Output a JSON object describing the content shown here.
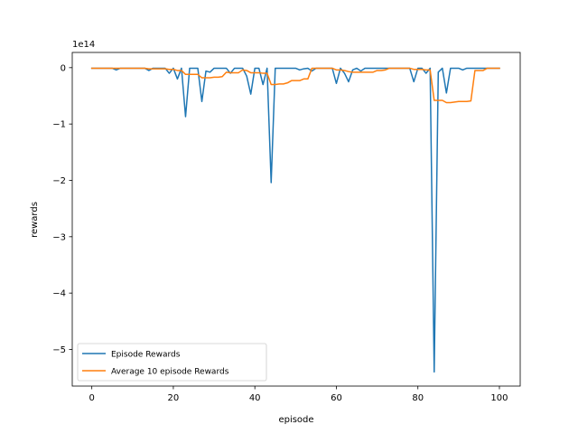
{
  "chart_data": {
    "type": "line",
    "title": "",
    "xlabel": "episode",
    "ylabel": "rewards",
    "y_offset_label": "1e14",
    "xlim": [
      -4.8,
      105.1
    ],
    "ylim": [
      -5.65,
      0.27
    ],
    "x_ticks": [
      0,
      20,
      40,
      60,
      80,
      100
    ],
    "x_tick_labels": [
      "0",
      "20",
      "40",
      "60",
      "80",
      "100"
    ],
    "y_ticks": [
      0,
      -1,
      -2,
      -3,
      -4,
      -5
    ],
    "y_tick_labels": [
      "0",
      "−1",
      "−2",
      "−3",
      "−4",
      "−5"
    ],
    "grid": false,
    "legend_position": "lower-left",
    "series": [
      {
        "name": "Episode Rewards",
        "color": "#1f77b4",
        "x": [
          0,
          1,
          2,
          3,
          4,
          5,
          6,
          7,
          8,
          9,
          10,
          11,
          12,
          13,
          14,
          15,
          16,
          17,
          18,
          19,
          20,
          21,
          22,
          23,
          24,
          25,
          26,
          27,
          28,
          29,
          30,
          31,
          32,
          33,
          34,
          35,
          36,
          37,
          38,
          39,
          40,
          41,
          42,
          43,
          44,
          45,
          46,
          47,
          48,
          49,
          50,
          51,
          52,
          53,
          54,
          55,
          56,
          57,
          58,
          59,
          60,
          61,
          62,
          63,
          64,
          65,
          66,
          67,
          68,
          69,
          70,
          71,
          72,
          73,
          74,
          75,
          76,
          77,
          78,
          79,
          80,
          81,
          82,
          83,
          84,
          85,
          86,
          87,
          88,
          89,
          90,
          91,
          92,
          93,
          94,
          95,
          96,
          97,
          98,
          99,
          100
        ],
        "values": [
          -0.01,
          -0.01,
          -0.01,
          -0.01,
          -0.01,
          -0.01,
          -0.04,
          -0.01,
          -0.01,
          -0.01,
          -0.01,
          -0.01,
          -0.01,
          -0.01,
          -0.05,
          -0.01,
          -0.01,
          -0.01,
          -0.01,
          -0.1,
          -0.01,
          -0.2,
          -0.01,
          -0.87,
          -0.01,
          -0.01,
          -0.01,
          -0.6,
          -0.06,
          -0.08,
          -0.01,
          -0.01,
          -0.01,
          -0.01,
          -0.1,
          -0.01,
          -0.01,
          -0.01,
          -0.15,
          -0.47,
          -0.01,
          -0.01,
          -0.3,
          -0.01,
          -2.04,
          -0.01,
          -0.01,
          -0.01,
          -0.01,
          -0.01,
          -0.01,
          -0.04,
          -0.02,
          -0.01,
          -0.06,
          -0.01,
          -0.01,
          -0.01,
          -0.01,
          -0.01,
          -0.28,
          -0.01,
          -0.1,
          -0.25,
          -0.04,
          -0.01,
          -0.06,
          -0.01,
          -0.01,
          -0.01,
          -0.01,
          -0.01,
          -0.01,
          -0.01,
          -0.01,
          -0.01,
          -0.01,
          -0.01,
          -0.01,
          -0.25,
          -0.01,
          -0.01,
          -0.1,
          -0.01,
          -5.4,
          -0.08,
          -0.01,
          -0.45,
          -0.01,
          -0.01,
          -0.01,
          -0.04,
          -0.01,
          -0.01,
          -0.01,
          -0.01,
          -0.01,
          -0.01,
          -0.01,
          -0.01,
          -0.01
        ]
      },
      {
        "name": "Average 10 episode Rewards",
        "color": "#ff7f0e",
        "x": [
          0,
          1,
          2,
          3,
          4,
          5,
          6,
          7,
          8,
          9,
          10,
          11,
          12,
          13,
          14,
          15,
          16,
          17,
          18,
          19,
          20,
          21,
          22,
          23,
          24,
          25,
          26,
          27,
          28,
          29,
          30,
          31,
          32,
          33,
          34,
          35,
          36,
          37,
          38,
          39,
          40,
          41,
          42,
          43,
          44,
          45,
          46,
          47,
          48,
          49,
          50,
          51,
          52,
          53,
          54,
          55,
          56,
          57,
          58,
          59,
          60,
          61,
          62,
          63,
          64,
          65,
          66,
          67,
          68,
          69,
          70,
          71,
          72,
          73,
          74,
          75,
          76,
          77,
          78,
          79,
          80,
          81,
          82,
          83,
          84,
          85,
          86,
          87,
          88,
          89,
          90,
          91,
          92,
          93,
          94,
          95,
          96,
          97,
          98,
          99,
          100
        ],
        "values": [
          -0.01,
          -0.01,
          -0.01,
          -0.01,
          -0.01,
          -0.01,
          -0.01,
          -0.01,
          -0.01,
          -0.01,
          -0.01,
          -0.01,
          -0.01,
          -0.01,
          -0.02,
          -0.02,
          -0.02,
          -0.02,
          -0.02,
          -0.03,
          -0.03,
          -0.05,
          -0.05,
          -0.12,
          -0.12,
          -0.12,
          -0.12,
          -0.18,
          -0.18,
          -0.18,
          -0.17,
          -0.17,
          -0.16,
          -0.08,
          -0.09,
          -0.09,
          -0.09,
          -0.04,
          -0.05,
          -0.09,
          -0.09,
          -0.09,
          -0.1,
          -0.1,
          -0.3,
          -0.3,
          -0.29,
          -0.29,
          -0.27,
          -0.23,
          -0.23,
          -0.23,
          -0.2,
          -0.2,
          -0.01,
          -0.01,
          -0.01,
          -0.01,
          -0.01,
          -0.01,
          -0.04,
          -0.04,
          -0.05,
          -0.07,
          -0.08,
          -0.08,
          -0.08,
          -0.08,
          -0.08,
          -0.08,
          -0.05,
          -0.05,
          -0.04,
          -0.01,
          -0.01,
          -0.01,
          -0.01,
          -0.01,
          -0.01,
          -0.03,
          -0.03,
          -0.03,
          -0.04,
          -0.04,
          -0.58,
          -0.58,
          -0.58,
          -0.62,
          -0.62,
          -0.61,
          -0.6,
          -0.6,
          -0.6,
          -0.59,
          -0.05,
          -0.05,
          -0.05,
          -0.01,
          -0.01,
          -0.01,
          -0.01
        ]
      }
    ]
  }
}
